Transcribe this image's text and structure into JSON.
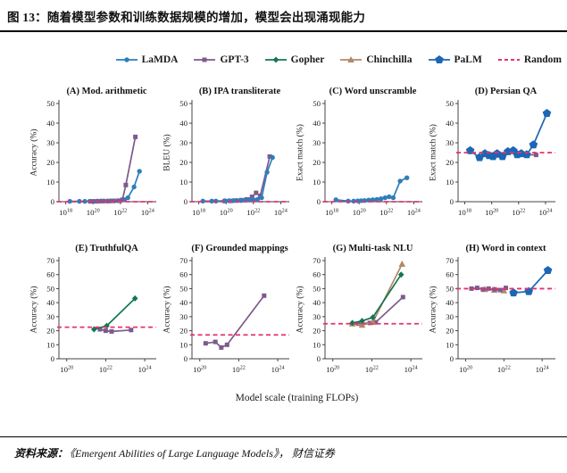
{
  "header": {
    "title": "图 13：随着模型参数和训练数据规模的增加，模型会出现涌现能力"
  },
  "footer": {
    "source_prefix": "资料来源：",
    "source_text": "《Emergent Abilities of Large Language Models》， 财信证券"
  },
  "figure": {
    "xaxis_label": "Model scale (training FLOPs)",
    "legend": [
      {
        "name": "LaMDA",
        "color": "#2e7ebb",
        "marker": "circle"
      },
      {
        "name": "GPT-3",
        "color": "#7d5a8e",
        "marker": "square"
      },
      {
        "name": "Gopher",
        "color": "#15764f",
        "marker": "diamond"
      },
      {
        "name": "Chinchilla",
        "color": "#b08a68",
        "marker": "triangle"
      },
      {
        "name": "PaLM",
        "color": "#1b67b5",
        "marker": "pentagon"
      },
      {
        "name": "Random",
        "color": "#e5336e",
        "marker": "dash"
      }
    ]
  },
  "chart_data": [
    {
      "type": "line",
      "label": "(A)",
      "title": "Mod. arithmetic",
      "ylabel": "Accuracy (%)",
      "ylim": [
        0,
        50
      ],
      "yticks": [
        0,
        10,
        20,
        30,
        40,
        50
      ],
      "xlim": [
        17.5,
        24.5
      ],
      "xticks": [
        18,
        20,
        22,
        24
      ],
      "random_baseline": 0,
      "series": [
        {
          "name": "LaMDA",
          "x": [
            18.3,
            19.0,
            19.4,
            19.75,
            20.05,
            20.3,
            20.55,
            20.8,
            21.05,
            21.3,
            21.55,
            21.8,
            22.05,
            22.3,
            22.55,
            23.0,
            23.4
          ],
          "y": [
            0.2,
            0.2,
            0.2,
            0.2,
            0.2,
            0.3,
            0.3,
            0.3,
            0.3,
            0.4,
            0.4,
            0.5,
            0.6,
            1.0,
            2.0,
            7.5,
            15.5
          ]
        },
        {
          "name": "GPT-3",
          "x": [
            19.9,
            20.3,
            20.7,
            21.1,
            21.5,
            21.9,
            22.15,
            22.4,
            23.1
          ],
          "y": [
            0.2,
            0.2,
            0.3,
            0.3,
            0.4,
            0.5,
            1.0,
            8.5,
            33.0
          ]
        }
      ]
    },
    {
      "type": "line",
      "label": "(B)",
      "title": "IPA transliterate",
      "ylabel": "BLEU (%)",
      "ylim": [
        0,
        50
      ],
      "yticks": [
        0,
        10,
        20,
        30,
        40,
        50
      ],
      "xlim": [
        17.5,
        24.5
      ],
      "xticks": [
        18,
        20,
        22,
        24
      ],
      "random_baseline": 0,
      "series": [
        {
          "name": "GPT-3",
          "x": [
            19.9,
            20.3,
            20.7,
            21.1,
            21.5,
            21.9,
            22.2,
            22.5,
            23.2
          ],
          "y": [
            0.3,
            0.4,
            0.6,
            0.8,
            1.2,
            2.5,
            4.5,
            3.0,
            23.0
          ]
        },
        {
          "name": "LaMDA",
          "x": [
            18.3,
            18.95,
            19.25,
            19.9,
            20.2,
            20.5,
            20.8,
            21.1,
            21.4,
            21.7,
            22.0,
            22.3,
            22.6,
            23.0,
            23.4
          ],
          "y": [
            0.3,
            0.3,
            0.3,
            0.5,
            0.5,
            0.5,
            0.6,
            0.6,
            0.8,
            0.8,
            1.0,
            1.2,
            2.0,
            15.0,
            22.5
          ]
        }
      ]
    },
    {
      "type": "line",
      "label": "(C)",
      "title": "Word unscramble",
      "ylabel": "Exact match (%)",
      "ylim": [
        0,
        50
      ],
      "yticks": [
        0,
        10,
        20,
        30,
        40,
        50
      ],
      "xlim": [
        17.5,
        24.5
      ],
      "xticks": [
        18,
        20,
        22,
        24
      ],
      "random_baseline": 0,
      "series": [
        {
          "name": "LaMDA",
          "x": [
            18.3,
            19.2,
            19.6,
            19.9,
            20.15,
            20.4,
            20.7,
            21.0,
            21.3,
            21.6,
            21.9,
            22.2,
            22.5,
            23.0,
            23.5
          ],
          "y": [
            1.0,
            0.3,
            0.3,
            0.4,
            0.5,
            0.6,
            0.8,
            1.0,
            1.2,
            1.5,
            2.0,
            2.5,
            2.0,
            10.5,
            12.2
          ]
        }
      ]
    },
    {
      "type": "line",
      "label": "(D)",
      "title": "Persian QA",
      "ylabel": "Exact match (%)",
      "ylim": [
        0,
        50
      ],
      "yticks": [
        0,
        10,
        20,
        30,
        40,
        50
      ],
      "xlim": [
        17.5,
        24.6
      ],
      "xticks": [
        18,
        20,
        22,
        24
      ],
      "random_baseline": 25,
      "series": [
        {
          "name": "GPT-3",
          "x": [
            19.6,
            20.0,
            20.4,
            20.8,
            21.2,
            21.6,
            22.0,
            22.4,
            23.3
          ],
          "y": [
            24.5,
            24.0,
            23.5,
            24.0,
            25.0,
            25.5,
            24.0,
            24.0,
            23.8
          ]
        },
        {
          "name": "PaLM",
          "x": [
            18.4,
            19.1,
            19.5,
            19.8,
            20.1,
            20.4,
            20.8,
            21.2,
            21.6,
            21.9,
            22.2,
            22.6,
            23.1,
            24.1
          ],
          "y": [
            26.0,
            22.5,
            24.5,
            23.5,
            23.0,
            24.5,
            23.0,
            25.5,
            26.0,
            24.0,
            24.5,
            24.0,
            29.0,
            45.0
          ]
        }
      ]
    },
    {
      "type": "line",
      "label": "(E)",
      "title": "TruthfulQA",
      "ylabel": "Accuracy (%)",
      "ylim": [
        0,
        70
      ],
      "yticks": [
        0,
        10,
        20,
        30,
        40,
        50,
        60,
        70
      ],
      "xlim": [
        19.6,
        24.5
      ],
      "xticks": [
        20,
        22,
        24
      ],
      "random_baseline": 22.5,
      "series": [
        {
          "name": "GPT-3",
          "x": [
            21.7,
            22.0,
            22.3,
            23.3
          ],
          "y": [
            21.0,
            20.0,
            19.5,
            20.5
          ]
        },
        {
          "name": "Gopher",
          "x": [
            21.4,
            22.05,
            23.5
          ],
          "y": [
            21.0,
            23.5,
            43.0
          ]
        }
      ]
    },
    {
      "type": "line",
      "label": "(F)",
      "title": "Grounded mappings",
      "ylabel": "Accuracy (%)",
      "ylim": [
        0,
        70
      ],
      "yticks": [
        0,
        10,
        20,
        30,
        40,
        50,
        60,
        70
      ],
      "xlim": [
        19.6,
        24.5
      ],
      "xticks": [
        20,
        22,
        24
      ],
      "random_baseline": 17,
      "series": [
        {
          "name": "GPT-3",
          "x": [
            20.3,
            20.8,
            21.1,
            21.4,
            23.3
          ],
          "y": [
            11.0,
            12.0,
            8.0,
            10.0,
            45.0
          ]
        }
      ]
    },
    {
      "type": "line",
      "label": "(G)",
      "title": "Multi-task NLU",
      "ylabel": "Accuracy (%)",
      "ylim": [
        0,
        70
      ],
      "yticks": [
        0,
        10,
        20,
        30,
        40,
        50,
        60,
        70
      ],
      "xlim": [
        19.6,
        24.5
      ],
      "xticks": [
        20,
        22,
        24
      ],
      "random_baseline": 25,
      "series": [
        {
          "name": "GPT-3",
          "x": [
            21.3,
            21.9,
            22.2,
            23.6
          ],
          "y": [
            25.0,
            25.5,
            26.0,
            44.0
          ]
        },
        {
          "name": "Chinchilla",
          "x": [
            21.0,
            21.5,
            22.05,
            23.55
          ],
          "y": [
            25.0,
            24.0,
            26.0,
            67.5
          ]
        },
        {
          "name": "Gopher",
          "x": [
            21.0,
            21.5,
            22.05,
            23.5
          ],
          "y": [
            25.5,
            27.0,
            29.5,
            60.0
          ]
        }
      ]
    },
    {
      "type": "line",
      "label": "(H)",
      "title": "Word in context",
      "ylabel": "Accuracy (%)",
      "ylim": [
        0,
        70
      ],
      "yticks": [
        0,
        10,
        20,
        30,
        40,
        50,
        60,
        70
      ],
      "xlim": [
        19.6,
        24.6
      ],
      "xticks": [
        20,
        22,
        24
      ],
      "random_baseline": 50,
      "series": [
        {
          "name": "Chinchilla",
          "x": [
            21.0,
            21.5,
            22.0
          ],
          "y": [
            49.5,
            49.0,
            48.5
          ]
        },
        {
          "name": "GPT-3",
          "x": [
            20.3,
            20.6,
            20.9,
            21.2,
            21.5,
            21.8,
            22.1
          ],
          "y": [
            50.0,
            50.5,
            49.5,
            50.0,
            49.5,
            49.0,
            50.5
          ]
        },
        {
          "name": "PaLM",
          "x": [
            22.5,
            23.3,
            24.3
          ],
          "y": [
            47.0,
            48.0,
            63.0
          ]
        }
      ]
    }
  ]
}
